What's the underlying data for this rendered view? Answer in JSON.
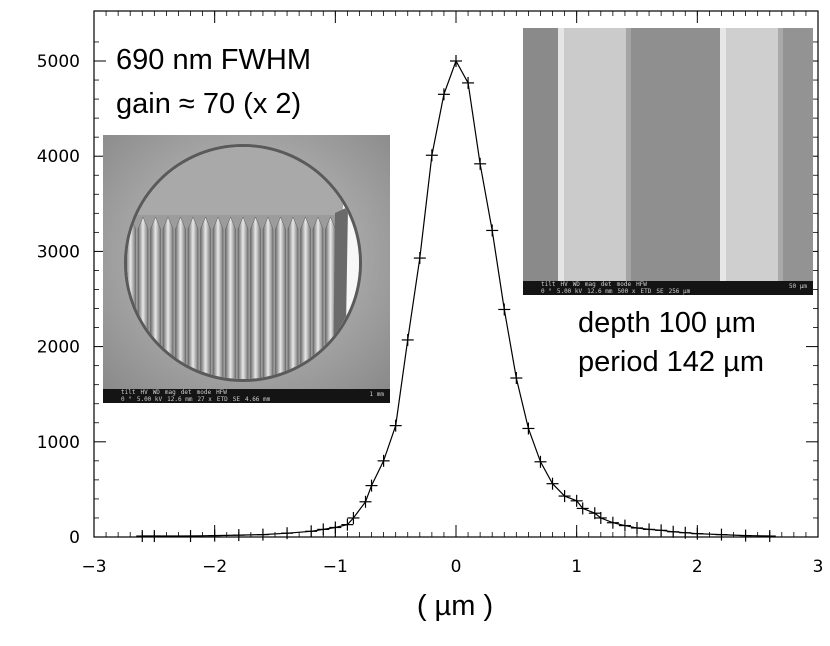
{
  "chart_data": {
    "type": "line",
    "marker": "plus",
    "xlabel": "( µm )",
    "ylabel": "",
    "xlim": [
      -3,
      3
    ],
    "ylim": [
      0,
      5300
    ],
    "x_ticks": [
      -3,
      -2,
      -1,
      0,
      1,
      2,
      3
    ],
    "x_tick_labels": [
      "−3",
      "−2",
      "−1",
      "0",
      "1",
      "2",
      "3"
    ],
    "y_ticks": [
      0,
      1000,
      2000,
      3000,
      4000,
      5000
    ],
    "y_tick_labels": [
      "0",
      "1000",
      "2000",
      "3000",
      "4000",
      "5000"
    ],
    "series": [
      {
        "x": [
          -2.6,
          -2.5,
          -2.2,
          -2.0,
          -1.8,
          -1.6,
          -1.4,
          -1.2,
          -1.1,
          -1.0,
          -0.9,
          -0.85,
          -0.75,
          -0.7,
          -0.6,
          -0.5,
          -0.4,
          -0.3,
          -0.2,
          -0.1,
          0.0,
          0.1,
          0.2,
          0.3,
          0.4,
          0.5,
          0.6,
          0.7,
          0.8,
          0.9,
          1.0,
          1.05,
          1.15,
          1.2,
          1.3,
          1.4,
          1.5,
          1.6,
          1.7,
          1.8,
          1.9,
          2.0,
          2.2,
          2.4,
          2.6
        ],
        "y": [
          10,
          10,
          10,
          15,
          20,
          25,
          40,
          60,
          80,
          100,
          130,
          200,
          370,
          540,
          800,
          1170,
          2070,
          2930,
          4010,
          4650,
          5000,
          4770,
          3920,
          3220,
          2390,
          1670,
          1140,
          790,
          560,
          430,
          380,
          300,
          250,
          200,
          150,
          120,
          95,
          80,
          70,
          55,
          45,
          35,
          25,
          15,
          10
        ],
        "color": "#000000"
      }
    ],
    "annotations": {
      "fwhm": "690 nm FWHM",
      "gain": "gain ≈ 70 (x 2)",
      "depth": "depth  100 µm",
      "period": "period 142 µm"
    },
    "grid": false,
    "legend": "none"
  },
  "insets": {
    "left_sem": {
      "labels": [
        "tilt",
        "HV",
        "WD",
        "mag",
        "det",
        "mode",
        "HFW"
      ],
      "values": [
        "0 °",
        "5.00 kV",
        "12.6 mm",
        "27 x",
        "ETD",
        "SE",
        "4.66 mm"
      ],
      "scale": "1 mm"
    },
    "right_sem": {
      "labels": [
        "tilt",
        "HV",
        "WD",
        "mag",
        "det",
        "mode",
        "HFW"
      ],
      "values": [
        "0 °",
        "5.00 kV",
        "12.6 mm",
        "500 x",
        "ETD",
        "SE",
        "256 µm"
      ],
      "scale": "50 µm"
    }
  }
}
